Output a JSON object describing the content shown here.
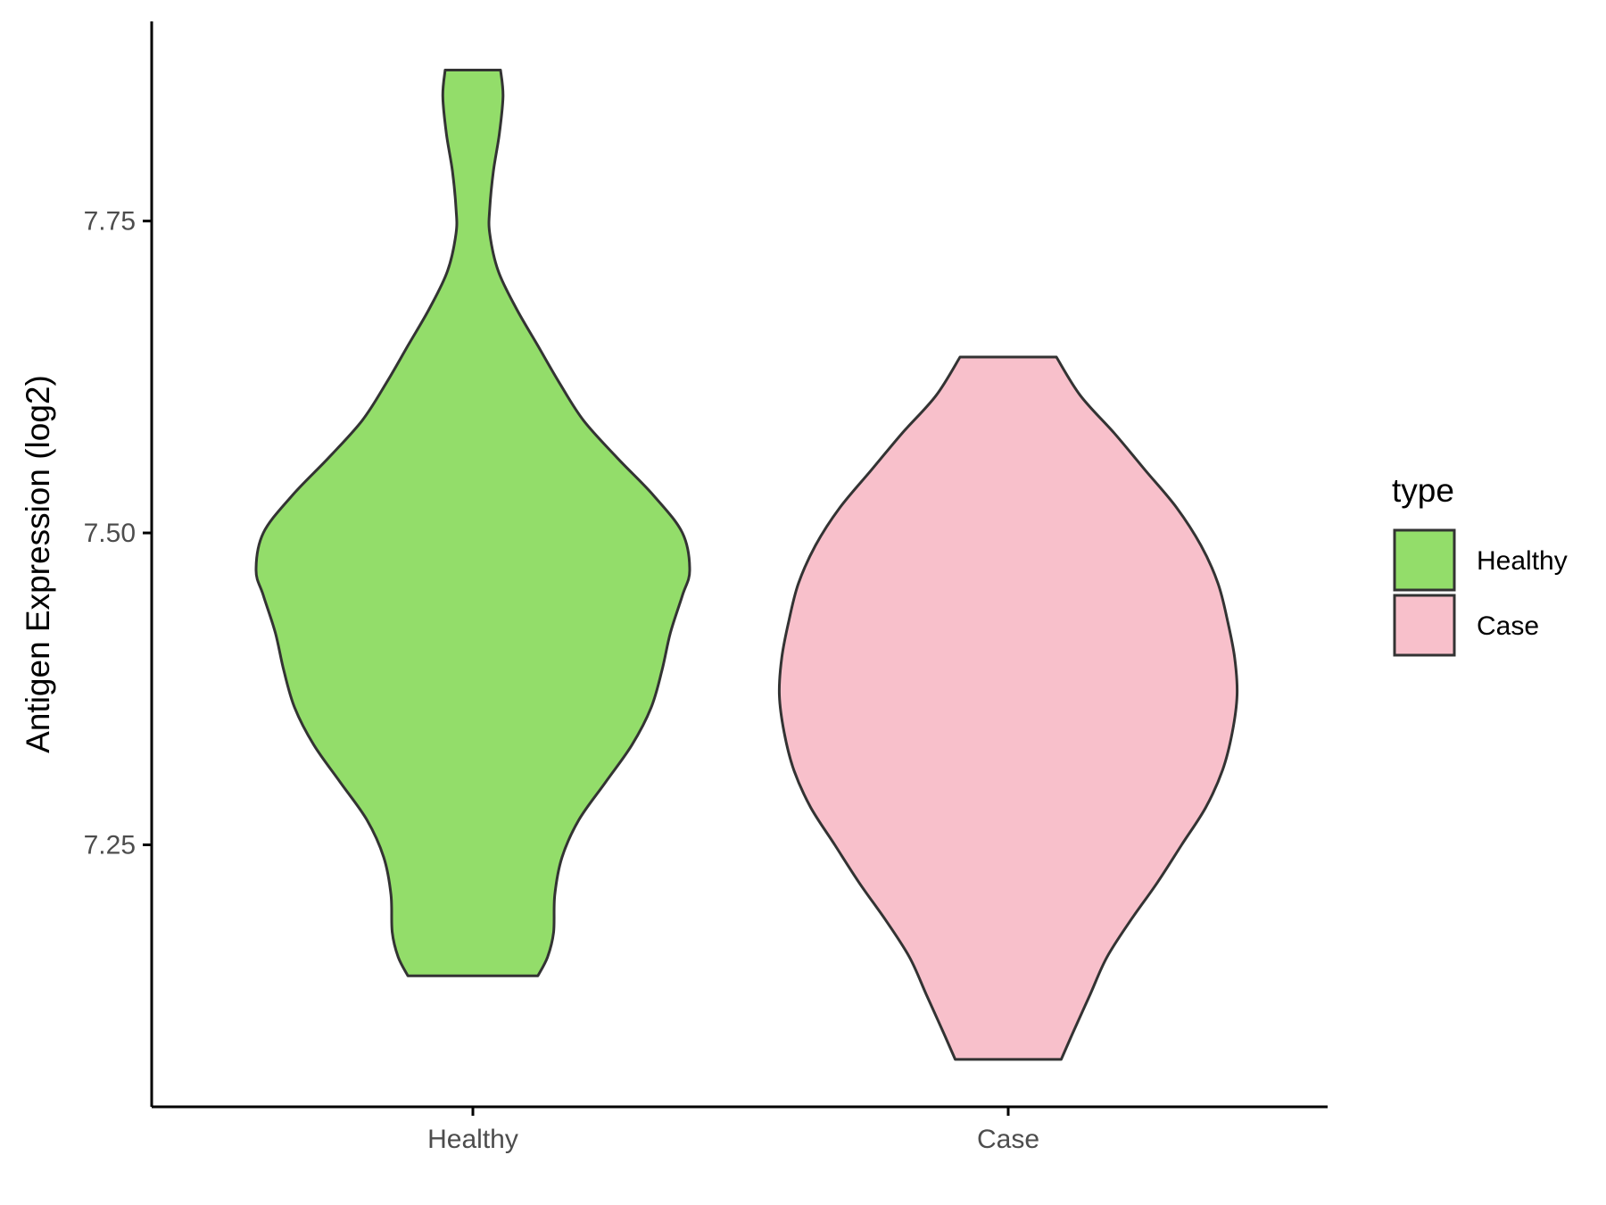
{
  "chart_data": {
    "type": "violin",
    "ylabel": "Antigen Expression (log2)",
    "xlabel": "",
    "categories": [
      "Healthy",
      "Case"
    ],
    "y_ticks": [
      "7.25",
      "7.50",
      "7.75"
    ],
    "ylim": [
      7.04,
      7.91
    ],
    "legend": {
      "title": "type",
      "position": "right",
      "entries": [
        {
          "label": "Healthy",
          "color": "#93dd6a"
        },
        {
          "label": "Case",
          "color": "#f8c0cb"
        }
      ]
    },
    "grid": false,
    "series": [
      {
        "category": "Healthy",
        "color": "#93dd6a",
        "min": 7.145,
        "max": 7.871,
        "density": [
          [
            7.145,
            0.27
          ],
          [
            7.16,
            0.31
          ],
          [
            7.18,
            0.335
          ],
          [
            7.21,
            0.34
          ],
          [
            7.24,
            0.37
          ],
          [
            7.27,
            0.44
          ],
          [
            7.3,
            0.55
          ],
          [
            7.33,
            0.66
          ],
          [
            7.36,
            0.74
          ],
          [
            7.39,
            0.785
          ],
          [
            7.42,
            0.82
          ],
          [
            7.45,
            0.87
          ],
          [
            7.47,
            0.9
          ],
          [
            7.5,
            0.87
          ],
          [
            7.53,
            0.75
          ],
          [
            7.56,
            0.6
          ],
          [
            7.59,
            0.46
          ],
          [
            7.62,
            0.36
          ],
          [
            7.65,
            0.27
          ],
          [
            7.68,
            0.18
          ],
          [
            7.71,
            0.105
          ],
          [
            7.74,
            0.07
          ],
          [
            7.76,
            0.07
          ],
          [
            7.79,
            0.085
          ],
          [
            7.82,
            0.11
          ],
          [
            7.85,
            0.125
          ],
          [
            7.871,
            0.115
          ]
        ]
      },
      {
        "category": "Case",
        "color": "#f8c0cb",
        "min": 7.078,
        "max": 7.641,
        "density": [
          [
            7.078,
            0.22
          ],
          [
            7.1,
            0.27
          ],
          [
            7.13,
            0.34
          ],
          [
            7.16,
            0.41
          ],
          [
            7.19,
            0.51
          ],
          [
            7.22,
            0.62
          ],
          [
            7.25,
            0.72
          ],
          [
            7.28,
            0.82
          ],
          [
            7.31,
            0.89
          ],
          [
            7.34,
            0.93
          ],
          [
            7.37,
            0.95
          ],
          [
            7.4,
            0.94
          ],
          [
            7.43,
            0.91
          ],
          [
            7.46,
            0.87
          ],
          [
            7.49,
            0.8
          ],
          [
            7.52,
            0.7
          ],
          [
            7.55,
            0.57
          ],
          [
            7.58,
            0.44
          ],
          [
            7.61,
            0.3
          ],
          [
            7.641,
            0.2
          ]
        ]
      }
    ]
  }
}
